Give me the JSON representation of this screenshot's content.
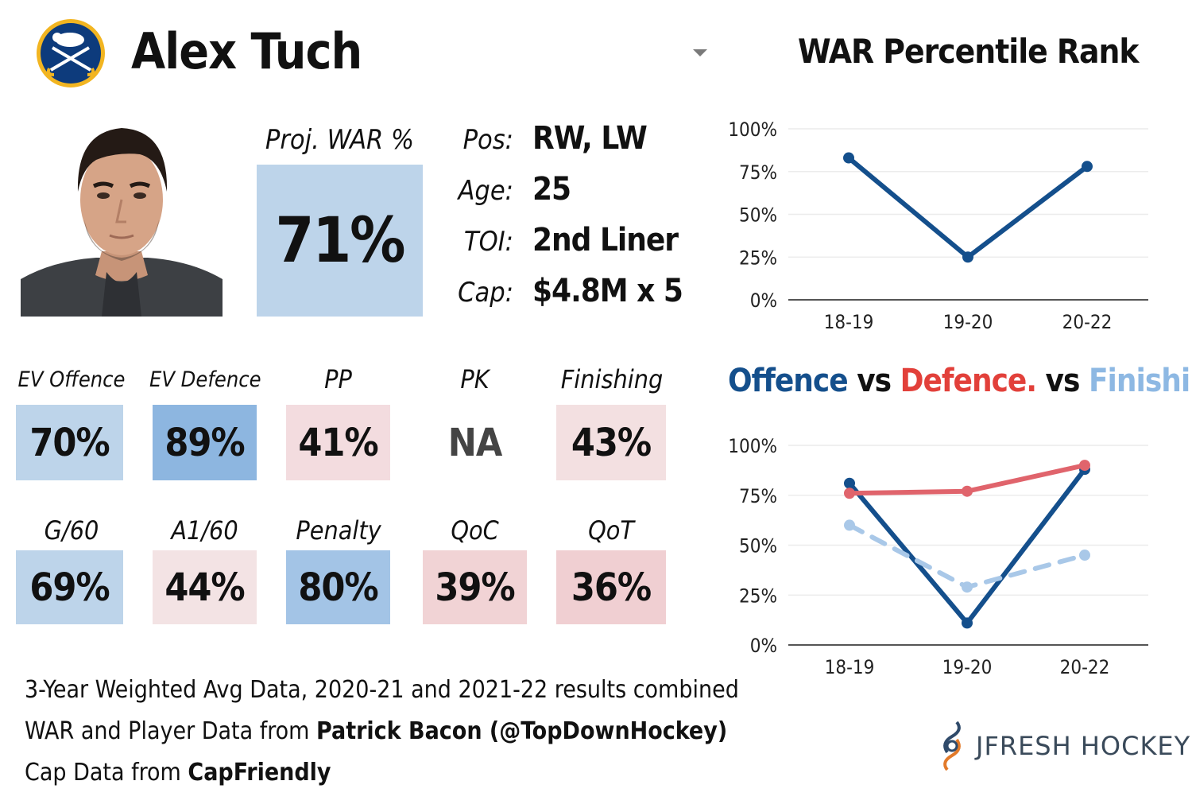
{
  "header": {
    "player_name": "Alex Tuch",
    "chart_title": "WAR Percentile Rank"
  },
  "proj_war": {
    "label": "Proj. WAR %",
    "value": "71%"
  },
  "bio": [
    {
      "label": "Pos:",
      "value": "RW, LW"
    },
    {
      "label": "Age:",
      "value": "25"
    },
    {
      "label": "TOI:",
      "value": "2nd Liner"
    },
    {
      "label": "Cap:",
      "value": "$4.8M x 5"
    }
  ],
  "stats_row1": [
    {
      "label": "EV Offence",
      "value": "70%",
      "color": "#bdd4ea"
    },
    {
      "label": "EV Defence",
      "value": "89%",
      "color": "#8db6e0"
    },
    {
      "label": "PP",
      "value": "41%",
      "color": "#f3dcdf"
    },
    {
      "label": "PK",
      "value": "NA",
      "color": "#ffffff"
    },
    {
      "label": "Finishing",
      "value": "43%",
      "color": "#f3e0e1"
    }
  ],
  "stats_row2": [
    {
      "label": "G/60",
      "value": "69%",
      "color": "#bdd4ea"
    },
    {
      "label": "A1/60",
      "value": "44%",
      "color": "#f3e3e4"
    },
    {
      "label": "Penalty",
      "value": "80%",
      "color": "#a3c4e6"
    },
    {
      "label": "QoC",
      "value": "39%",
      "color": "#f1d3d5"
    },
    {
      "label": "QoT",
      "value": "36%",
      "color": "#f0cfd2"
    }
  ],
  "footer": {
    "line1": "3-Year Weighted Avg Data, 2020-21 and 2021-22 results combined",
    "line2_prefix": "WAR and Player Data from ",
    "line2_bold": "Patrick Bacon (@TopDownHockey)",
    "line3_prefix": "Cap Data from ",
    "line3_bold": "CapFriendly"
  },
  "brand": {
    "name": "JFRESH HOCKEY"
  },
  "colors": {
    "offence": "#144f8c",
    "defence": "#e0646c",
    "finishing": "#a9c8e8",
    "title_offence": "#144f8c",
    "title_defence": "#e2403a",
    "title_finishing": "#8db8e3"
  },
  "chart2_title": {
    "offence": "Offence",
    "vs1": "vs",
    "defence": "Defence.",
    "vs2": "vs",
    "finishing": "Finishing"
  },
  "chart_data": [
    {
      "type": "line",
      "title": "WAR Percentile Rank",
      "categories": [
        "18-19",
        "19-20",
        "20-22"
      ],
      "series": [
        {
          "name": "WAR",
          "values": [
            83,
            25,
            78
          ]
        }
      ],
      "ylim": [
        0,
        100
      ],
      "yticks": [
        "0%",
        "25%",
        "50%",
        "75%",
        "100%"
      ],
      "grid": true
    },
    {
      "type": "line",
      "title": "Offence vs Defence. vs Finishing",
      "categories": [
        "18-19",
        "19-20",
        "20-22"
      ],
      "series": [
        {
          "name": "Offence",
          "values": [
            81,
            11,
            88
          ]
        },
        {
          "name": "Defence",
          "values": [
            76,
            77,
            90
          ]
        },
        {
          "name": "Finishing",
          "values": [
            60,
            29,
            45
          ]
        }
      ],
      "ylim": [
        0,
        100
      ],
      "yticks": [
        "0%",
        "25%",
        "50%",
        "75%",
        "100%"
      ],
      "grid": true
    }
  ]
}
